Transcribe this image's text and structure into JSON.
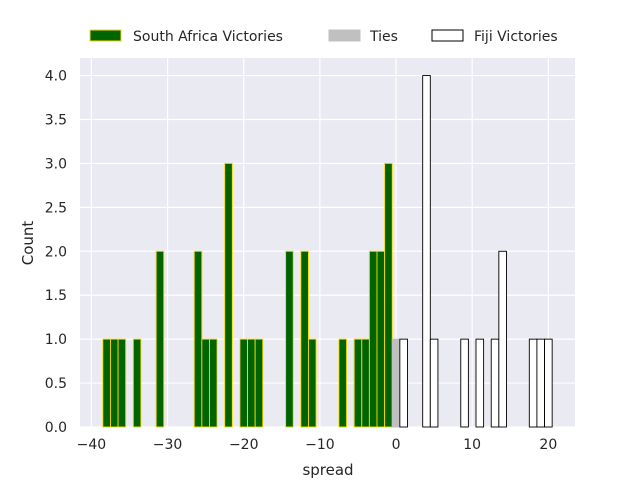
{
  "chart_data": {
    "type": "bar",
    "title": "",
    "xlabel": "spread",
    "ylabel": "Count",
    "xlim": [
      -41.5,
      23.5
    ],
    "ylim": [
      0,
      4.2
    ],
    "bin_width": 1,
    "xticks": [
      -40,
      -30,
      -20,
      -10,
      0,
      10,
      20
    ],
    "xtick_labels": [
      "−40",
      "−30",
      "−20",
      "−10",
      "0",
      "10",
      "20"
    ],
    "yticks": [
      0,
      0.5,
      1,
      1.5,
      2,
      2.5,
      3,
      3.5,
      4
    ],
    "ytick_labels": [
      "0.0",
      "0.5",
      "1.0",
      "1.5",
      "2.0",
      "2.5",
      "3.0",
      "3.5",
      "4.0"
    ],
    "grid": true,
    "legend_position": "top",
    "colors": {
      "plot_background": "#eaeaf2",
      "grid": "#ffffff",
      "south_africa_fill": "#006400",
      "south_africa_edge": "#ffd700",
      "ties_fill": "#c0c0c0",
      "fiji_fill": "#ffffff",
      "fiji_edge": "#000000"
    },
    "series": [
      {
        "name": "South Africa Victories",
        "x": [
          -38,
          -37,
          -36,
          -34,
          -31,
          -26,
          -25,
          -24,
          -22,
          -20,
          -19,
          -18,
          -14,
          -12,
          -11,
          -7,
          -5,
          -4,
          -3,
          -2,
          -1
        ],
        "values": [
          1,
          1,
          1,
          1,
          2,
          2,
          1,
          1,
          3,
          1,
          1,
          1,
          2,
          2,
          1,
          1,
          1,
          1,
          2,
          2,
          3
        ]
      },
      {
        "name": "Ties",
        "x": [
          0
        ],
        "values": [
          1
        ]
      },
      {
        "name": "Fiji Victories",
        "x": [
          1,
          4,
          5,
          9,
          11,
          13,
          14,
          18,
          19,
          20
        ],
        "values": [
          1,
          4,
          1,
          1,
          1,
          1,
          2,
          1,
          1,
          1
        ]
      }
    ]
  }
}
